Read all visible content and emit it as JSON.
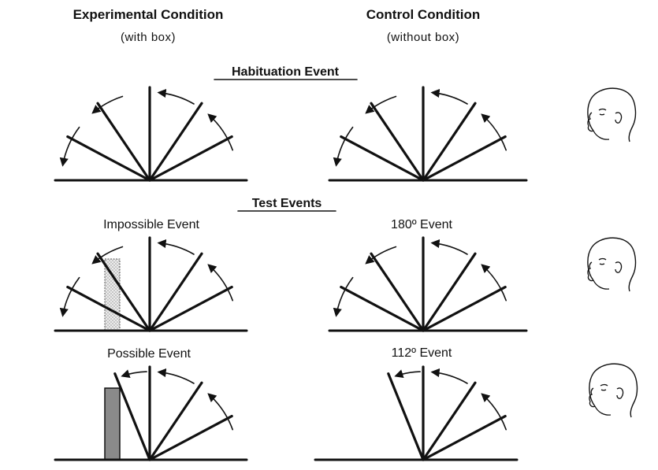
{
  "headers": {
    "experimental": {
      "title": "Experimental Condition",
      "subtitle": "(with box)"
    },
    "control": {
      "title": "Control Condition",
      "subtitle": "(without box)"
    }
  },
  "sections": {
    "habituation": "Habituation Event",
    "test": "Test Events"
  },
  "events": {
    "impossible": "Impossible Event",
    "deg180": "180º Event",
    "possible": "Possible Event",
    "deg112": "112º Event"
  },
  "icons": [
    "infant-face-icon",
    "arrow-arc-icon"
  ],
  "colors": {
    "ink": "#111111",
    "box_dotted_fill": "#d8d8d8",
    "box_solid_fill": "#8a8a8a"
  }
}
